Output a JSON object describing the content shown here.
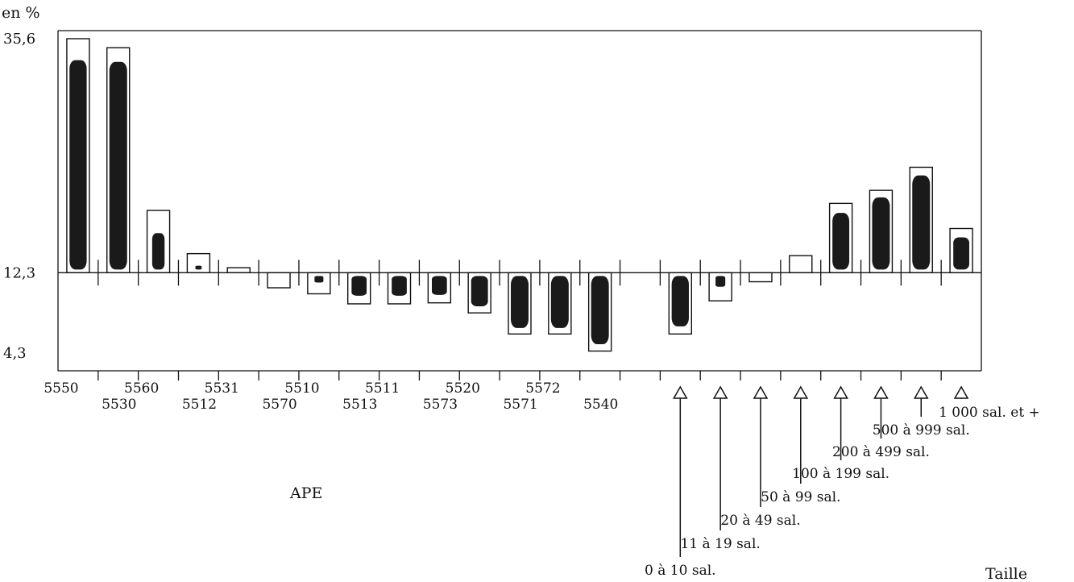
{
  "chart_data": {
    "type": "bar",
    "ylabel": "en %",
    "xlabel": "APE",
    "x2label": "Taille",
    "ylim": [
      4.3,
      35.6
    ],
    "baseline": 12.3,
    "y_ticks": [
      "35,6",
      "12,3",
      "4,3"
    ],
    "y_tick_values": [
      35.6,
      12.3,
      4.3
    ],
    "grid": false,
    "bar_fill": "#1a1a1a",
    "groups": [
      {
        "name": "APE",
        "categories": [
          "5550",
          "5530",
          "5560",
          "5512",
          "5531",
          "5570",
          "5510",
          "5513",
          "5511",
          "5573",
          "5520",
          "5571",
          "5572",
          "5540"
        ],
        "values": [
          35.6,
          34.7,
          18.5,
          14.2,
          12.8,
          10.8,
          10.2,
          9.2,
          9.2,
          9.3,
          8.3,
          6.2,
          6.2,
          4.5
        ],
        "shaded": [
          0.92,
          0.95,
          0.65,
          0.3,
          0,
          0,
          0.45,
          0.8,
          0.8,
          0.8,
          0.9,
          0.95,
          0.95,
          0.95
        ]
      },
      {
        "name": "Taille",
        "categories": [
          "0 à 10 sal.",
          "11 à 19 sal.",
          "20 à 49 sal.",
          "50 à 99 sal.",
          "100 à 199 sal.",
          "200 à 499 sal.",
          "500 à 999 sal.",
          "1 000 sal. et +"
        ],
        "values": [
          6.2,
          9.5,
          11.4,
          14.0,
          19.2,
          20.5,
          22.8,
          16.7
        ],
        "shaded": [
          0.92,
          0.5,
          0,
          0,
          0.9,
          0.95,
          0.95,
          0.85
        ]
      }
    ]
  }
}
